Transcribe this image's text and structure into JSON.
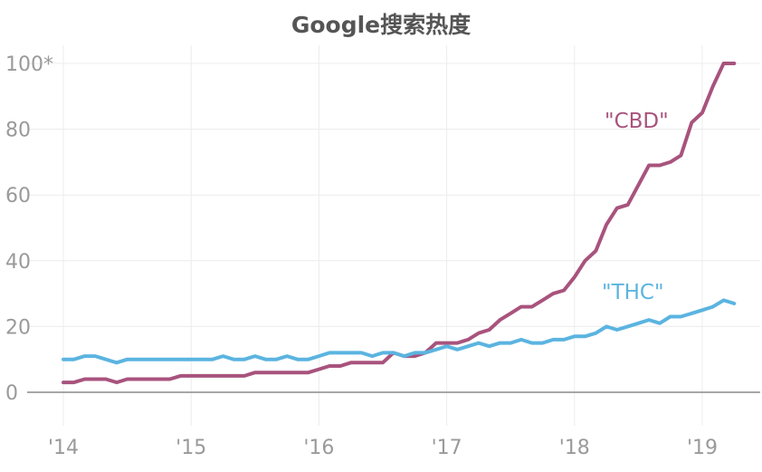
{
  "chart_data": {
    "type": "line",
    "title": "Google搜索热度",
    "xlabel": "",
    "ylabel": "",
    "xlim": [
      2014,
      2019.5
    ],
    "ylim": [
      0,
      100
    ],
    "y_ticks": [
      0,
      20,
      40,
      60,
      80,
      100
    ],
    "y_tick_labels": [
      "0",
      "20",
      "40",
      "60",
      "80",
      "100*"
    ],
    "x_ticks": [
      2014,
      2015,
      2016,
      2017,
      2018,
      2019
    ],
    "x_tick_labels": [
      "'14",
      "'15",
      "'16",
      "'17",
      "'18",
      "'19"
    ],
    "grid": true,
    "series": [
      {
        "name": "\"CBD\"",
        "color": "#a8537d",
        "x": [
          2014.0,
          2014.083,
          2014.167,
          2014.25,
          2014.333,
          2014.417,
          2014.5,
          2014.583,
          2014.667,
          2014.75,
          2014.833,
          2014.917,
          2015.0,
          2015.083,
          2015.167,
          2015.25,
          2015.333,
          2015.417,
          2015.5,
          2015.583,
          2015.667,
          2015.75,
          2015.833,
          2015.917,
          2016.0,
          2016.083,
          2016.167,
          2016.25,
          2016.333,
          2016.417,
          2016.5,
          2016.583,
          2016.667,
          2016.75,
          2016.833,
          2016.917,
          2017.0,
          2017.083,
          2017.167,
          2017.25,
          2017.333,
          2017.417,
          2017.5,
          2017.583,
          2017.667,
          2017.75,
          2017.833,
          2017.917,
          2018.0,
          2018.083,
          2018.167,
          2018.25,
          2018.333,
          2018.417,
          2018.5,
          2018.583,
          2018.667,
          2018.75,
          2018.833,
          2018.917,
          2019.0,
          2019.083,
          2019.167,
          2019.25
        ],
        "values": [
          3,
          3,
          4,
          4,
          4,
          3,
          4,
          4,
          4,
          4,
          4,
          5,
          5,
          5,
          5,
          5,
          5,
          5,
          6,
          6,
          6,
          6,
          6,
          6,
          7,
          8,
          8,
          9,
          9,
          9,
          9,
          12,
          11,
          11,
          12,
          15,
          15,
          15,
          16,
          18,
          19,
          22,
          24,
          26,
          26,
          28,
          30,
          31,
          35,
          40,
          43,
          51,
          56,
          57,
          63,
          69,
          69,
          70,
          72,
          82,
          85,
          93,
          100,
          100
        ]
      },
      {
        "name": "\"THC\"",
        "color": "#5bb4e0",
        "x": [
          2014.0,
          2014.083,
          2014.167,
          2014.25,
          2014.333,
          2014.417,
          2014.5,
          2014.583,
          2014.667,
          2014.75,
          2014.833,
          2014.917,
          2015.0,
          2015.083,
          2015.167,
          2015.25,
          2015.333,
          2015.417,
          2015.5,
          2015.583,
          2015.667,
          2015.75,
          2015.833,
          2015.917,
          2016.0,
          2016.083,
          2016.167,
          2016.25,
          2016.333,
          2016.417,
          2016.5,
          2016.583,
          2016.667,
          2016.75,
          2016.833,
          2016.917,
          2017.0,
          2017.083,
          2017.167,
          2017.25,
          2017.333,
          2017.417,
          2017.5,
          2017.583,
          2017.667,
          2017.75,
          2017.833,
          2017.917,
          2018.0,
          2018.083,
          2018.167,
          2018.25,
          2018.333,
          2018.417,
          2018.5,
          2018.583,
          2018.667,
          2018.75,
          2018.833,
          2018.917,
          2019.0,
          2019.083,
          2019.167,
          2019.25
        ],
        "values": [
          10,
          10,
          11,
          11,
          10,
          9,
          10,
          10,
          10,
          10,
          10,
          10,
          10,
          10,
          10,
          11,
          10,
          10,
          11,
          10,
          10,
          11,
          10,
          10,
          11,
          12,
          12,
          12,
          12,
          11,
          12,
          12,
          11,
          12,
          12,
          13,
          14,
          13,
          14,
          15,
          14,
          15,
          15,
          16,
          15,
          15,
          16,
          16,
          17,
          17,
          18,
          20,
          19,
          20,
          21,
          22,
          21,
          23,
          23,
          24,
          25,
          26,
          28,
          27
        ]
      }
    ]
  }
}
